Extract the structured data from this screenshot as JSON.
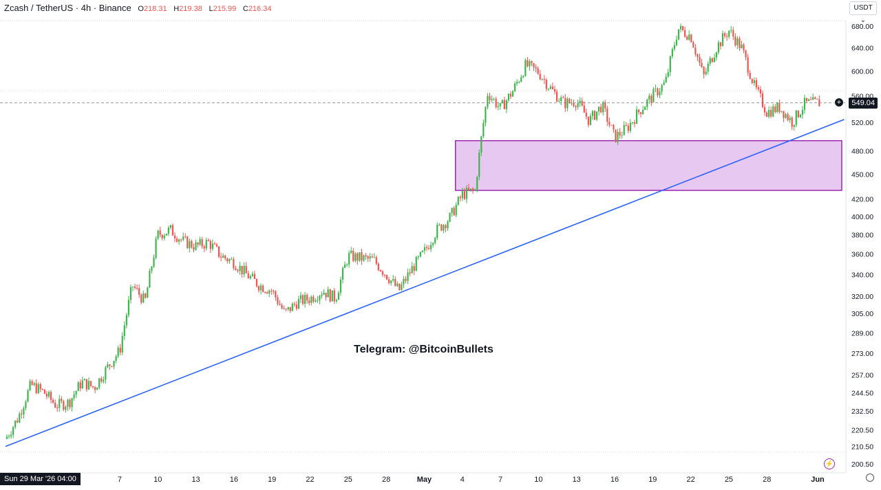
{
  "legend": {
    "symbol": "Zcash / TetherUS · 4h · Binance",
    "open_key": "O",
    "open": "218.31",
    "high_key": "H",
    "high": "219.38",
    "low_key": "L",
    "low": "215.99",
    "close_key": "C",
    "close": "216.34"
  },
  "currency_selector": "USDT",
  "last_price": "549.04",
  "crosshair_date": "Sun 29 Mar '26   04:00",
  "watermark": "Telegram: @BitcoinBullets",
  "colors": {
    "up": "#26a69a",
    "up_body": "#3cb54a",
    "down": "#ef5350",
    "trendline": "#2962ff",
    "zone_fill": "#e6c8f0",
    "zone_border": "#9c27b0"
  },
  "chart_data": {
    "type": "candlestick",
    "y_axis": {
      "scale": "log",
      "ticks": [
        680,
        640,
        600,
        560,
        520,
        480,
        450,
        420,
        400,
        380,
        360,
        340,
        320,
        305,
        289,
        273,
        257,
        244.5,
        232.5,
        220.5,
        210.5,
        200.5
      ],
      "tick_labels": [
        "680.00",
        "640.00",
        "600.00",
        "560.00",
        "520.00",
        "480.00",
        "450.00",
        "420.00",
        "400.00",
        "380.00",
        "360.00",
        "340.00",
        "320.00",
        "305.00",
        "289.00",
        "273.00",
        "257.00",
        "244.50",
        "232.50",
        "220.50",
        "210.50",
        "200.50"
      ]
    },
    "x_axis": {
      "range": [
        "2026-03-29",
        "2026-06-01"
      ],
      "ticks": [
        {
          "date": "2026-04-07",
          "label": "7"
        },
        {
          "date": "2026-04-10",
          "label": "10"
        },
        {
          "date": "2026-04-13",
          "label": "13"
        },
        {
          "date": "2026-04-16",
          "label": "16"
        },
        {
          "date": "2026-04-19",
          "label": "19"
        },
        {
          "date": "2026-04-22",
          "label": "22"
        },
        {
          "date": "2026-04-25",
          "label": "25"
        },
        {
          "date": "2026-04-28",
          "label": "28"
        },
        {
          "date": "2026-05-01",
          "label": "May"
        },
        {
          "date": "2026-05-04",
          "label": "4"
        },
        {
          "date": "2026-05-07",
          "label": "7"
        },
        {
          "date": "2026-05-10",
          "label": "10"
        },
        {
          "date": "2026-05-13",
          "label": "13"
        },
        {
          "date": "2026-05-16",
          "label": "16"
        },
        {
          "date": "2026-05-19",
          "label": "19"
        },
        {
          "date": "2026-05-22",
          "label": "22"
        },
        {
          "date": "2026-05-25",
          "label": "25"
        },
        {
          "date": "2026-05-28",
          "label": "28"
        },
        {
          "date": "2026-06-01",
          "label": "Jun"
        }
      ]
    },
    "price_path": [
      {
        "date": "2026-03-29",
        "price": 215
      },
      {
        "date": "2026-03-30",
        "price": 228
      },
      {
        "date": "2026-03-31",
        "price": 250
      },
      {
        "date": "2026-04-01",
        "price": 245
      },
      {
        "date": "2026-04-02",
        "price": 236
      },
      {
        "date": "2026-04-03",
        "price": 238
      },
      {
        "date": "2026-04-04",
        "price": 252
      },
      {
        "date": "2026-04-05",
        "price": 248
      },
      {
        "date": "2026-04-06",
        "price": 262
      },
      {
        "date": "2026-04-07",
        "price": 275
      },
      {
        "date": "2026-04-08",
        "price": 330
      },
      {
        "date": "2026-04-09",
        "price": 315
      },
      {
        "date": "2026-04-10",
        "price": 380
      },
      {
        "date": "2026-04-11",
        "price": 385
      },
      {
        "date": "2026-04-12",
        "price": 373
      },
      {
        "date": "2026-04-13",
        "price": 368
      },
      {
        "date": "2026-04-14",
        "price": 372
      },
      {
        "date": "2026-04-15",
        "price": 358
      },
      {
        "date": "2026-04-16",
        "price": 352
      },
      {
        "date": "2026-04-17",
        "price": 340
      },
      {
        "date": "2026-04-18",
        "price": 330
      },
      {
        "date": "2026-04-19",
        "price": 325
      },
      {
        "date": "2026-04-20",
        "price": 305
      },
      {
        "date": "2026-04-21",
        "price": 315
      },
      {
        "date": "2026-04-22",
        "price": 318
      },
      {
        "date": "2026-04-23",
        "price": 325
      },
      {
        "date": "2026-04-24",
        "price": 318
      },
      {
        "date": "2026-04-25",
        "price": 358
      },
      {
        "date": "2026-04-26",
        "price": 356
      },
      {
        "date": "2026-04-27",
        "price": 354
      },
      {
        "date": "2026-04-28",
        "price": 340
      },
      {
        "date": "2026-04-29",
        "price": 325
      },
      {
        "date": "2026-04-30",
        "price": 345
      },
      {
        "date": "2026-05-01",
        "price": 362
      },
      {
        "date": "2026-05-02",
        "price": 385
      },
      {
        "date": "2026-05-03",
        "price": 398
      },
      {
        "date": "2026-05-04",
        "price": 425
      },
      {
        "date": "2026-05-05",
        "price": 430
      },
      {
        "date": "2026-05-06",
        "price": 565
      },
      {
        "date": "2026-05-07",
        "price": 540
      },
      {
        "date": "2026-05-08",
        "price": 568
      },
      {
        "date": "2026-05-09",
        "price": 610
      },
      {
        "date": "2026-05-10",
        "price": 598
      },
      {
        "date": "2026-05-11",
        "price": 570
      },
      {
        "date": "2026-05-12",
        "price": 548
      },
      {
        "date": "2026-05-13",
        "price": 552
      },
      {
        "date": "2026-05-14",
        "price": 522
      },
      {
        "date": "2026-05-15",
        "price": 545
      },
      {
        "date": "2026-05-16",
        "price": 498
      },
      {
        "date": "2026-05-17",
        "price": 512
      },
      {
        "date": "2026-05-18",
        "price": 538
      },
      {
        "date": "2026-05-19",
        "price": 560
      },
      {
        "date": "2026-05-20",
        "price": 580
      },
      {
        "date": "2026-05-21",
        "price": 675
      },
      {
        "date": "2026-05-22",
        "price": 662
      },
      {
        "date": "2026-05-23",
        "price": 590
      },
      {
        "date": "2026-05-24",
        "price": 640
      },
      {
        "date": "2026-05-25",
        "price": 672
      },
      {
        "date": "2026-05-26",
        "price": 640
      },
      {
        "date": "2026-05-27",
        "price": 575
      },
      {
        "date": "2026-05-28",
        "price": 535
      },
      {
        "date": "2026-05-29",
        "price": 542
      },
      {
        "date": "2026-05-30",
        "price": 520
      },
      {
        "date": "2026-05-31",
        "price": 548
      },
      {
        "date": "2026-06-01",
        "price": 549
      }
    ],
    "trendline": [
      {
        "date": "2026-03-29",
        "price": 210.5
      },
      {
        "date": "2026-06-02",
        "price": 524
      }
    ],
    "zone": {
      "from": "2026-05-04",
      "to": "2026-06-02",
      "top": 494,
      "bottom": 430
    },
    "current_price_line": 549.04,
    "grid": false
  }
}
